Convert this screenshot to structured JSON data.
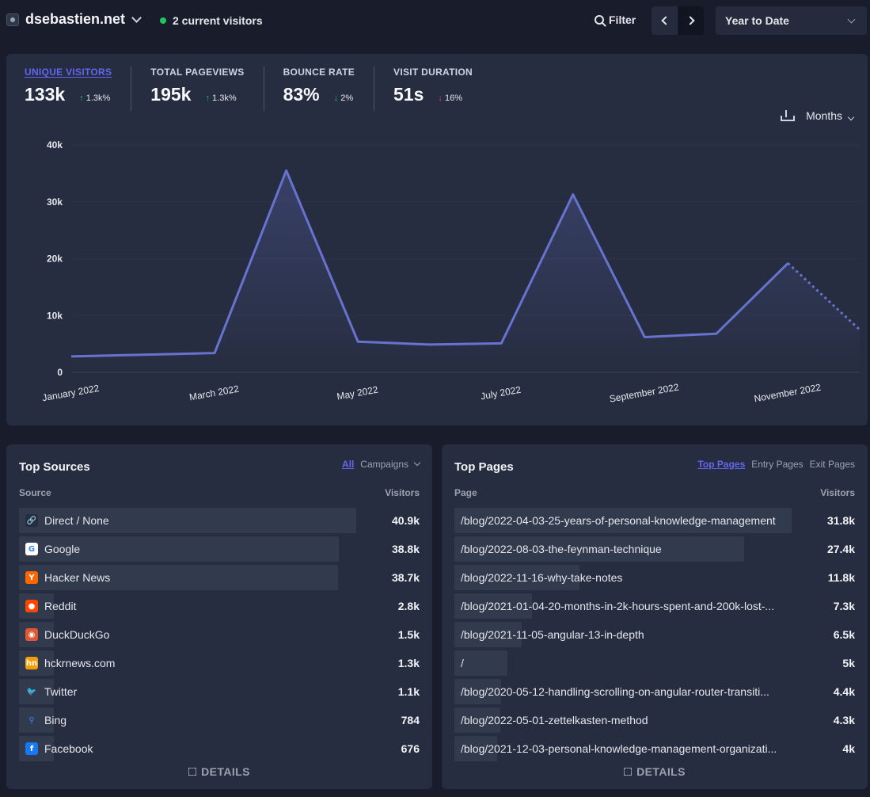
{
  "header": {
    "site_name": "dsebastien.net",
    "current_visitors": "2 current visitors",
    "filter_label": "Filter",
    "period_label": "Year to Date"
  },
  "stats": [
    {
      "label": "UNIQUE VISITORS",
      "value": "133k",
      "change": "1.3k%",
      "arrow": "↑",
      "active": true
    },
    {
      "label": "TOTAL PAGEVIEWS",
      "value": "195k",
      "change": "1.3k%",
      "arrow": "↑",
      "active": false
    },
    {
      "label": "BOUNCE RATE",
      "value": "83%",
      "change": "2%",
      "arrow": "↓",
      "active": false
    },
    {
      "label": "VISIT DURATION",
      "value": "51s",
      "change": "16%",
      "arrow": "↓",
      "active": false
    }
  ],
  "interval_label": "Months",
  "chart_data": {
    "type": "area",
    "x": [
      "January 2022",
      "February 2022",
      "March 2022",
      "April 2022",
      "May 2022",
      "June 2022",
      "July 2022",
      "August 2022",
      "September 2022",
      "October 2022",
      "November 2022",
      "December 2022"
    ],
    "x_tick_labels": [
      "January 2022",
      "March 2022",
      "May 2022",
      "July 2022",
      "September 2022",
      "November 2022"
    ],
    "series": [
      {
        "values": [
          2800,
          3100,
          3400,
          35500,
          5400,
          4900,
          5100,
          31300,
          6200,
          6800,
          19200,
          7500
        ]
      }
    ],
    "y_ticks": [
      "0",
      "10k",
      "20k",
      "30k",
      "40k"
    ],
    "ylim": [
      0,
      40000
    ],
    "partial_last_point": true,
    "color": "#6872cf"
  },
  "sources": {
    "title": "Top Sources",
    "tab_all": "All",
    "tab_campaigns": "Campaigns",
    "col_source": "Source",
    "col_visitors": "Visitors",
    "details": "DETAILS",
    "items": [
      {
        "label": "Direct / None",
        "value": "40.9k",
        "fraction": 1.0,
        "icon": "link-icon"
      },
      {
        "label": "Google",
        "value": "38.8k",
        "fraction": 0.949,
        "icon": "google-icon"
      },
      {
        "label": "Hacker News",
        "value": "38.7k",
        "fraction": 0.946,
        "icon": "hacker-news-icon"
      },
      {
        "label": "Reddit",
        "value": "2.8k",
        "fraction": 0.068,
        "icon": "reddit-icon"
      },
      {
        "label": "DuckDuckGo",
        "value": "1.5k",
        "fraction": 0.037,
        "icon": "duckduckgo-icon"
      },
      {
        "label": "hckrnews.com",
        "value": "1.3k",
        "fraction": 0.032,
        "icon": "hckrnews-icon"
      },
      {
        "label": "Twitter",
        "value": "1.1k",
        "fraction": 0.027,
        "icon": "twitter-icon"
      },
      {
        "label": "Bing",
        "value": "784",
        "fraction": 0.019,
        "icon": "bing-icon"
      },
      {
        "label": "Facebook",
        "value": "676",
        "fraction": 0.017,
        "icon": "facebook-icon"
      }
    ]
  },
  "pages": {
    "title": "Top Pages",
    "tab_top": "Top Pages",
    "tab_entry": "Entry Pages",
    "tab_exit": "Exit Pages",
    "col_page": "Page",
    "col_visitors": "Visitors",
    "details": "DETAILS",
    "items": [
      {
        "label": "/blog/2022-04-03-25-years-of-personal-knowledge-management",
        "value": "31.8k",
        "fraction": 1.0
      },
      {
        "label": "/blog/2022-08-03-the-feynman-technique",
        "value": "27.4k",
        "fraction": 0.86
      },
      {
        "label": "/blog/2022-11-16-why-take-notes",
        "value": "11.8k",
        "fraction": 0.37
      },
      {
        "label": "/blog/2021-01-04-20-months-in-2k-hours-spent-and-200k-lost-...",
        "value": "7.3k",
        "fraction": 0.23
      },
      {
        "label": "/blog/2021-11-05-angular-13-in-depth",
        "value": "6.5k",
        "fraction": 0.2
      },
      {
        "label": "/",
        "value": "5k",
        "fraction": 0.157
      },
      {
        "label": "/blog/2020-05-12-handling-scrolling-on-angular-router-transiti...",
        "value": "4.4k",
        "fraction": 0.138
      },
      {
        "label": "/blog/2022-05-01-zettelkasten-method",
        "value": "4.3k",
        "fraction": 0.135
      },
      {
        "label": "/blog/2021-12-03-personal-knowledge-management-organizati...",
        "value": "4k",
        "fraction": 0.126
      }
    ]
  }
}
